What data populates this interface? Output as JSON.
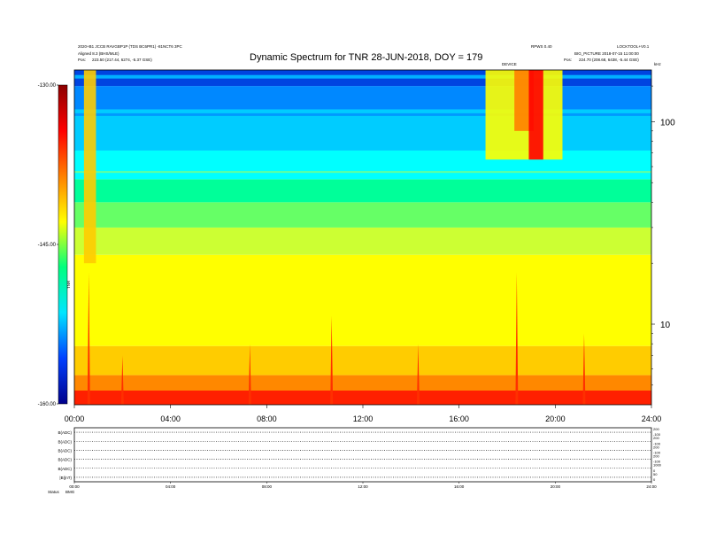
{
  "header": {
    "left_line1": "2020+B1 JCCB RAVGBP1P (TDS BC6PR1) -81NCT6 3PC",
    "left_line2": "Aligned 8.3 (BHS/MLE)",
    "left_pos_label": "Pos:",
    "left_pos_value": "223.50 (217.44, 6274, -5.37 GSE)",
    "right_top_a": "RPWS 0.40",
    "right_top_b": "LOCKTOOL+V0.1",
    "right_line2": "BIG_PICTURE 2018-07-15 11:00:00",
    "right_pos_label": "Pos:",
    "right_pos_value": "224.70 (208.68, 6438, -5.44 GSE)",
    "ticker_label": "DEVICE",
    "corner_label": "kHz",
    "corner_small": "0"
  },
  "chart_data": {
    "type": "heatmap",
    "title": "Dynamic Spectrum for TNR 28-JUN-2018, DOY = 179",
    "xlabel": "",
    "ylabel": "kHz",
    "x_ticks": [
      "00:00",
      "04:00",
      "08:00",
      "12:00",
      "16:00",
      "20:00",
      "24:00"
    ],
    "x_range_hours": [
      0,
      24
    ],
    "y_scale": "log",
    "y_ticks": [
      "100",
      "10"
    ],
    "y_tick_values": [
      100,
      10
    ],
    "y_range_khz": [
      4,
      180
    ],
    "colorbar": {
      "label": "TNR",
      "ticks": [
        "-130.00",
        "-145.00",
        "-160.00"
      ],
      "tick_values": [
        -130,
        -145,
        -160
      ],
      "range": [
        -160,
        -130
      ],
      "colors": [
        "#00008b",
        "#0040ff",
        "#00e5ff",
        "#00ff7f",
        "#ffff00",
        "#ff8000",
        "#ff0000",
        "#8b0000"
      ]
    },
    "bands": [
      {
        "ymin_khz": 4,
        "ymax_khz": 4.7,
        "color": "#ff2000"
      },
      {
        "ymin_khz": 4.7,
        "ymax_khz": 5.6,
        "color": "#ff8800"
      },
      {
        "ymin_khz": 5.6,
        "ymax_khz": 7.8,
        "color": "#ffcc00"
      },
      {
        "ymin_khz": 7.8,
        "ymax_khz": 22,
        "color": "#ffff00"
      },
      {
        "ymin_khz": 22,
        "ymax_khz": 30,
        "color": "#ccff33"
      },
      {
        "ymin_khz": 30,
        "ymax_khz": 40,
        "color": "#66ff66"
      },
      {
        "ymin_khz": 40,
        "ymax_khz": 52,
        "color": "#00ff99"
      },
      {
        "ymin_khz": 52,
        "ymax_khz": 72,
        "color": "#00ffff"
      },
      {
        "ymin_khz": 72,
        "ymax_khz": 115,
        "color": "#00ccff"
      },
      {
        "ymin_khz": 115,
        "ymax_khz": 150,
        "color": "#0088ff"
      },
      {
        "ymin_khz": 150,
        "ymax_khz": 180,
        "color": "#0044e0"
      }
    ],
    "events": [
      {
        "t_start": 17.1,
        "t_end": 20.3,
        "fmin_khz": 65,
        "fmax_khz": 180,
        "color": "#ffff00"
      },
      {
        "t_start": 18.3,
        "t_end": 19.1,
        "fmin_khz": 90,
        "fmax_khz": 180,
        "color": "#ff8000"
      },
      {
        "t_start": 18.9,
        "t_end": 19.5,
        "fmin_khz": 65,
        "fmax_khz": 180,
        "color": "#ff0000"
      },
      {
        "t_start": 0.4,
        "t_end": 0.9,
        "fmin_khz": 20,
        "fmax_khz": 180,
        "color": "#ffcc00"
      }
    ],
    "spikes": [
      {
        "t": 0.6,
        "fmin_khz": 4,
        "fmax_khz": 18,
        "color": "#ff3000"
      },
      {
        "t": 2.0,
        "fmin_khz": 4,
        "fmax_khz": 7,
        "color": "#ff3000"
      },
      {
        "t": 7.3,
        "fmin_khz": 4,
        "fmax_khz": 8,
        "color": "#ff3000"
      },
      {
        "t": 10.7,
        "fmin_khz": 4,
        "fmax_khz": 11,
        "color": "#ff3000"
      },
      {
        "t": 14.3,
        "fmin_khz": 4,
        "fmax_khz": 8,
        "color": "#ff3000"
      },
      {
        "t": 18.4,
        "fmin_khz": 4,
        "fmax_khz": 18,
        "color": "#ff3000"
      },
      {
        "t": 21.2,
        "fmin_khz": 4,
        "fmax_khz": 9,
        "color": "#ff3000"
      }
    ]
  },
  "lower_panel": {
    "left_labels": [
      "B(ADC)",
      "B(ADC)",
      "B(ADC)",
      "B(ADC)",
      "B(ADC)",
      "|B|(nT)"
    ],
    "right_labels": [
      "200",
      "200",
      "200",
      "200",
      "1000",
      "50"
    ],
    "right_labels_low": [
      "-100",
      "-100",
      "-100",
      "-100",
      "0",
      "0"
    ],
    "x_ticks": [
      "00:00",
      "04:00",
      "08:00",
      "12:00",
      "16:00",
      "20:00",
      "24:00"
    ],
    "footer_label": "Status",
    "footer_value": "BMG"
  }
}
